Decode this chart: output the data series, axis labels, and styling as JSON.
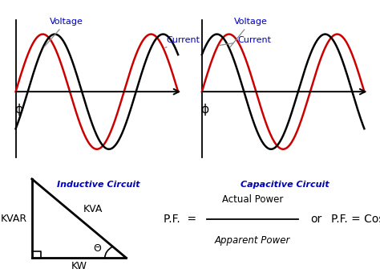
{
  "bg_color": "#ffffff",
  "voltage_color": "#cc0000",
  "current_color": "#000000",
  "label_color_blue": "#0000bb",
  "phi_label": "ϕ",
  "inductive_label": "Inductive Circuit",
  "capacitive_label": "Capacitive Circuit",
  "voltage_label": "Voltage",
  "current_label": "Current",
  "kva_label": "KVA",
  "kvar_label": "KVAR",
  "kw_label": "KW",
  "theta_label": "Θ",
  "pf_formula_top": "Actual Power",
  "pf_formula_bot": "Apparent Power",
  "pf_text1": "P.F.  =",
  "pf_or": "or",
  "pf_text2": "P.F. = CosΘ",
  "phase_shift_inductive": 0.7,
  "amplitude": 1.0
}
